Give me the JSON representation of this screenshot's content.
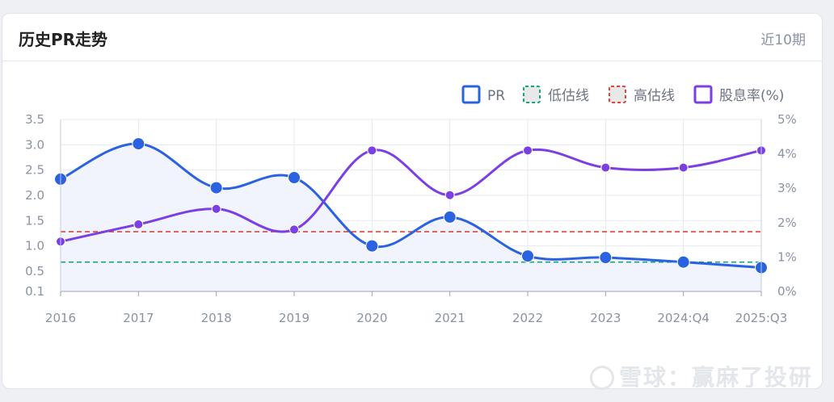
{
  "card": {
    "title": "历史PR走势",
    "period": "近10期"
  },
  "watermark": "雪球：赢麻了投研",
  "colors": {
    "pr": "#2a62e0",
    "low": "#16a57f",
    "high": "#e0453a",
    "div": "#7b3fe4",
    "area": "#f1f4fc"
  },
  "chart_data": {
    "type": "line",
    "title": "",
    "categories": [
      "2016",
      "2017",
      "2018",
      "2019",
      "2020",
      "2021",
      "2022",
      "2023",
      "2024:Q4",
      "2025:Q3"
    ],
    "y_left": {
      "ticks": [
        "3.5",
        "3.0",
        "2.5",
        "2.0",
        "1.5",
        "1.0",
        "0.5",
        "0.1"
      ],
      "tick_values": [
        3.5,
        3.0,
        2.5,
        2.0,
        1.5,
        1.0,
        0.5,
        0.1
      ],
      "range": [
        0.1,
        3.5
      ]
    },
    "y_right": {
      "ticks": [
        "5%",
        "4%",
        "3%",
        "2%",
        "1%",
        "0%"
      ],
      "tick_values": [
        5,
        4,
        3,
        2,
        1,
        0
      ],
      "range": [
        0,
        5
      ]
    },
    "series": [
      {
        "name": "PR",
        "axis": "left",
        "values": [
          2.32,
          3.02,
          2.15,
          2.35,
          1.0,
          1.57,
          0.8,
          0.77,
          0.68,
          0.57
        ]
      },
      {
        "name": "股息率(%)",
        "axis": "right",
        "values": [
          1.45,
          1.95,
          2.4,
          1.8,
          4.1,
          2.8,
          4.1,
          3.6,
          3.6,
          4.1
        ]
      }
    ],
    "reference_lines": [
      {
        "name": "低估线",
        "axis": "left",
        "value": 0.68
      },
      {
        "name": "高估线",
        "axis": "left",
        "value": 1.28
      }
    ],
    "legend": {
      "position": "top-right",
      "items": [
        "PR",
        "低估线",
        "高估线",
        "股息率(%)"
      ]
    },
    "grid": true
  }
}
